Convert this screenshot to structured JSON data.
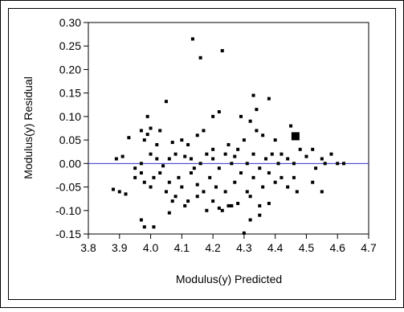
{
  "chart_data": {
    "type": "scatter",
    "xlabel": "Modulus(y) Predicted",
    "ylabel": "Modulus(y) Residual",
    "xlim": [
      3.8,
      4.7
    ],
    "ylim": [
      -0.15,
      0.3
    ],
    "x_ticks": [
      "3.8",
      "3.9",
      "4.0",
      "4.1",
      "4.2",
      "4.3",
      "4.4",
      "4.5",
      "4.6",
      "4.7"
    ],
    "y_ticks": [
      "-0.15",
      "-0.10",
      "-0.05",
      "0.00",
      "0.05",
      "0.10",
      "0.15",
      "0.20",
      "0.25",
      "0.30"
    ],
    "reference_line": 0.0,
    "colors": {
      "points": "#000000",
      "reference_line": "#3333cc",
      "highlight": "#000000"
    },
    "highlight_point": {
      "x": 4.465,
      "y": 0.058
    },
    "points": [
      [
        4.135,
        0.265
      ],
      [
        4.16,
        0.225
      ],
      [
        4.23,
        0.24
      ],
      [
        4.05,
        0.132
      ],
      [
        4.33,
        0.145
      ],
      [
        4.38,
        0.138
      ],
      [
        4.34,
        0.115
      ],
      [
        4.22,
        0.11
      ],
      [
        4.2,
        0.1
      ],
      [
        3.99,
        0.1
      ],
      [
        4.29,
        0.1
      ],
      [
        4.0,
        0.075
      ],
      [
        4.03,
        0.07
      ],
      [
        3.99,
        0.062
      ],
      [
        3.98,
        0.05
      ],
      [
        3.93,
        0.055
      ],
      [
        3.97,
        0.07
      ],
      [
        4.02,
        0.04
      ],
      [
        4.07,
        0.045
      ],
      [
        4.1,
        0.05
      ],
      [
        4.12,
        0.04
      ],
      [
        4.15,
        0.06
      ],
      [
        4.17,
        0.07
      ],
      [
        4.2,
        0.03
      ],
      [
        4.25,
        0.04
      ],
      [
        4.28,
        0.03
      ],
      [
        4.3,
        0.05
      ],
      [
        4.32,
        0.09
      ],
      [
        4.34,
        0.07
      ],
      [
        4.36,
        0.06
      ],
      [
        4.4,
        0.05
      ],
      [
        4.45,
        0.08
      ],
      [
        4.48,
        0.03
      ],
      [
        4.52,
        0.03
      ],
      [
        4.55,
        0.01
      ],
      [
        4.58,
        0.02
      ],
      [
        3.89,
        0.01
      ],
      [
        3.91,
        0.015
      ],
      [
        3.95,
        -0.01
      ],
      [
        3.97,
        0.0
      ],
      [
        4.0,
        0.02
      ],
      [
        4.02,
        0.01
      ],
      [
        4.04,
        -0.005
      ],
      [
        4.06,
        0.01
      ],
      [
        4.08,
        0.02
      ],
      [
        4.11,
        0.015
      ],
      [
        4.13,
        0.01
      ],
      [
        4.14,
        -0.01
      ],
      [
        4.16,
        0.0
      ],
      [
        4.18,
        0.02
      ],
      [
        4.2,
        0.01
      ],
      [
        4.22,
        -0.01
      ],
      [
        4.24,
        0.02
      ],
      [
        4.26,
        0.0
      ],
      [
        4.27,
        0.015
      ],
      [
        4.31,
        0.0
      ],
      [
        4.33,
        0.02
      ],
      [
        4.35,
        -0.01
      ],
      [
        4.37,
        0.01
      ],
      [
        4.39,
        0.02
      ],
      [
        4.41,
        0.0
      ],
      [
        4.42,
        0.02
      ],
      [
        4.44,
        0.01
      ],
      [
        4.46,
        0.0
      ],
      [
        4.5,
        0.015
      ],
      [
        4.53,
        -0.01
      ],
      [
        4.56,
        0.0
      ],
      [
        4.6,
        0.0
      ],
      [
        4.62,
        0.0
      ],
      [
        3.88,
        -0.055
      ],
      [
        3.9,
        -0.06
      ],
      [
        3.92,
        -0.065
      ],
      [
        3.95,
        -0.03
      ],
      [
        3.97,
        -0.02
      ],
      [
        3.98,
        -0.04
      ],
      [
        4.0,
        -0.05
      ],
      [
        4.01,
        -0.03
      ],
      [
        4.03,
        -0.02
      ],
      [
        4.05,
        -0.06
      ],
      [
        4.06,
        -0.04
      ],
      [
        4.08,
        -0.07
      ],
      [
        4.09,
        -0.03
      ],
      [
        4.1,
        -0.05
      ],
      [
        4.12,
        -0.08
      ],
      [
        4.13,
        -0.02
      ],
      [
        4.15,
        -0.045
      ],
      [
        4.17,
        -0.06
      ],
      [
        4.19,
        -0.03
      ],
      [
        4.2,
        -0.08
      ],
      [
        4.21,
        -0.05
      ],
      [
        4.23,
        -0.1
      ],
      [
        4.24,
        -0.06
      ],
      [
        4.26,
        -0.09
      ],
      [
        4.27,
        -0.04
      ],
      [
        4.28,
        -0.085
      ],
      [
        4.29,
        -0.02
      ],
      [
        4.31,
        -0.06
      ],
      [
        4.32,
        -0.07
      ],
      [
        4.33,
        -0.03
      ],
      [
        4.35,
        -0.09
      ],
      [
        4.36,
        -0.05
      ],
      [
        4.38,
        -0.02
      ],
      [
        4.4,
        -0.04
      ],
      [
        4.42,
        -0.03
      ],
      [
        4.44,
        -0.05
      ],
      [
        4.46,
        -0.03
      ],
      [
        4.47,
        -0.06
      ],
      [
        4.52,
        -0.04
      ],
      [
        4.55,
        -0.06
      ],
      [
        3.97,
        -0.12
      ],
      [
        3.98,
        -0.135
      ],
      [
        4.01,
        -0.135
      ],
      [
        4.06,
        -0.105
      ],
      [
        4.18,
        -0.1
      ],
      [
        4.22,
        -0.095
      ],
      [
        4.25,
        -0.09
      ],
      [
        4.3,
        -0.148
      ],
      [
        4.32,
        -0.12
      ],
      [
        4.35,
        -0.11
      ],
      [
        4.38,
        -0.085
      ],
      [
        4.15,
        -0.07
      ],
      [
        4.11,
        -0.09
      ],
      [
        4.07,
        -0.08
      ]
    ]
  }
}
